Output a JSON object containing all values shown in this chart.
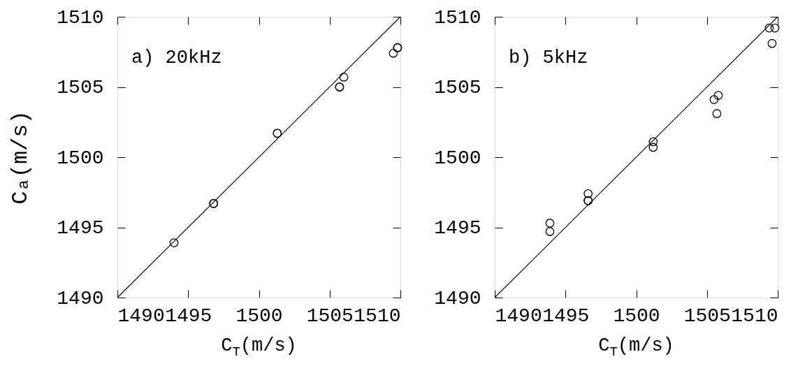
{
  "chart_data": [
    {
      "type": "scatter",
      "annotations": [
        "a) 20kHz"
      ],
      "xlabel": "C$_{T}$(m/s)",
      "ylabel": "Cₐ(m/s)",
      "xlim": [
        1490,
        1510
      ],
      "ylim": [
        1490,
        1510
      ],
      "xticks": [
        1490,
        1495,
        1500,
        1505,
        1510
      ],
      "yticks": [
        1490,
        1495,
        1500,
        1505,
        1510
      ],
      "series": [
        {
          "type": "scatter",
          "marker": "circle",
          "color": "#000000",
          "x": [
            1494.0,
            1496.8,
            1496.8,
            1501.3,
            1501.3,
            1505.7,
            1505.7,
            1506.0,
            1509.5,
            1509.8,
            1509.8
          ],
          "values": [
            1493.9,
            1496.7,
            1496.7,
            1501.7,
            1501.7,
            1505.0,
            1505.0,
            1505.7,
            1507.4,
            1507.8,
            1507.8
          ]
        },
        {
          "type": "line",
          "color": "#000000",
          "line_style": "solid",
          "x": [
            1490,
            1510
          ],
          "values": [
            1490,
            1510
          ]
        }
      ]
    },
    {
      "type": "scatter",
      "annotations": [
        "b) 5kHz"
      ],
      "xlabel": "C$_{T}$(m/s)",
      "xlim": [
        1490,
        1510
      ],
      "ylim": [
        1490,
        1510
      ],
      "xticks": [
        1490,
        1495,
        1500,
        1505,
        1510
      ],
      "yticks": [
        1490,
        1495,
        1500,
        1505,
        1510
      ],
      "series": [
        {
          "type": "scatter",
          "marker": "circle",
          "color": "#000000",
          "x": [
            1493.9,
            1493.9,
            1496.6,
            1496.6,
            1496.6,
            1501.2,
            1501.2,
            1505.5,
            1505.8,
            1505.7,
            1509.4,
            1509.8,
            1509.6
          ],
          "values": [
            1495.3,
            1494.7,
            1497.4,
            1496.9,
            1496.9,
            1501.1,
            1500.7,
            1504.1,
            1504.4,
            1503.1,
            1509.2,
            1509.2,
            1508.1
          ]
        },
        {
          "type": "line",
          "color": "#000000",
          "line_style": "solid",
          "x": [
            1490,
            1510
          ],
          "values": [
            1490,
            1510
          ]
        }
      ]
    }
  ]
}
